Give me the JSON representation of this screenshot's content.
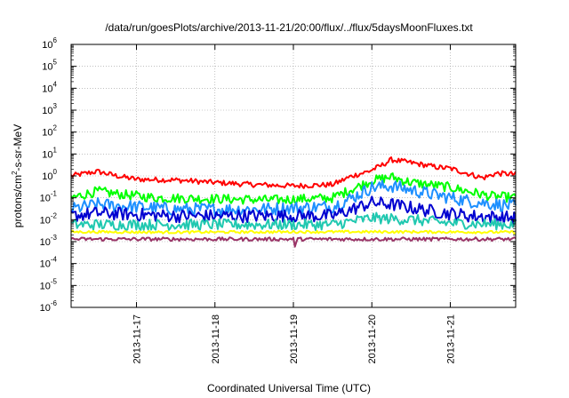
{
  "chart_data": {
    "type": "line",
    "title": "/data/run/goesPlots/archive/2013-11-21/20:00/flux/../flux/5daysMoonFluxes.txt",
    "xlabel": "Coordinated Universal Time (UTC)",
    "ylabel": "protons/cm²-s-sr-MeV",
    "ylabel_parts": [
      "protons/cm",
      "2",
      "-s-sr-MeV"
    ],
    "y_scale": "log",
    "ylim": [
      1e-06,
      1000000.0
    ],
    "y_ticks": [
      {
        "base": "10",
        "exp": "-6"
      },
      {
        "base": "10",
        "exp": "-5"
      },
      {
        "base": "10",
        "exp": "-4"
      },
      {
        "base": "10",
        "exp": "-3"
      },
      {
        "base": "10",
        "exp": "-2"
      },
      {
        "base": "10",
        "exp": "-1"
      },
      {
        "base": "10",
        "exp": "0"
      },
      {
        "base": "10",
        "exp": "1"
      },
      {
        "base": "10",
        "exp": "2"
      },
      {
        "base": "10",
        "exp": "3"
      },
      {
        "base": "10",
        "exp": "4"
      },
      {
        "base": "10",
        "exp": "5"
      },
      {
        "base": "10",
        "exp": "6"
      }
    ],
    "x_scale": "time",
    "xlim": [
      "2013-11-16 04:00",
      "2013-11-21 20:00"
    ],
    "x_ticks": [
      "2013-11-17",
      "2013-11-18",
      "2013-11-19",
      "2013-11-20",
      "2013-11-21"
    ],
    "grid": true,
    "series": [
      {
        "color": "#ff0000",
        "noise": 0.12,
        "points": [
          [
            "2013-11-16 04:00",
            1.0
          ],
          [
            "2013-11-16 12:00",
            1.6
          ],
          [
            "2013-11-16 18:00",
            1.0
          ],
          [
            "2013-11-17 00:00",
            0.7
          ],
          [
            "2013-11-17 12:00",
            0.65
          ],
          [
            "2013-11-18 00:00",
            0.5
          ],
          [
            "2013-11-18 12:00",
            0.4
          ],
          [
            "2013-11-19 00:00",
            0.35
          ],
          [
            "2013-11-19 12:00",
            0.4
          ],
          [
            "2013-11-19 18:00",
            1.0
          ],
          [
            "2013-11-19 23:00",
            1.6
          ],
          [
            "2013-11-20 03:00",
            3.0
          ],
          [
            "2013-11-20 06:00",
            5.5
          ],
          [
            "2013-11-20 12:00",
            4.0
          ],
          [
            "2013-11-20 20:00",
            2.5
          ],
          [
            "2013-11-21 00:00",
            2.2
          ],
          [
            "2013-11-21 06:00",
            1.2
          ],
          [
            "2013-11-21 10:00",
            0.8
          ],
          [
            "2013-11-21 14:00",
            1.3
          ],
          [
            "2013-11-21 20:00",
            1.2
          ]
        ]
      },
      {
        "color": "#00ff00",
        "noise": 0.22,
        "points": [
          [
            "2013-11-16 04:00",
            0.1
          ],
          [
            "2013-11-16 12:00",
            0.2
          ],
          [
            "2013-11-16 18:00",
            0.15
          ],
          [
            "2013-11-17 06:00",
            0.1
          ],
          [
            "2013-11-18 00:00",
            0.09
          ],
          [
            "2013-11-18 18:00",
            0.08
          ],
          [
            "2013-11-19 12:00",
            0.1
          ],
          [
            "2013-11-19 18:00",
            0.25
          ],
          [
            "2013-11-20 00:00",
            0.6
          ],
          [
            "2013-11-20 06:00",
            0.9
          ],
          [
            "2013-11-20 12:00",
            0.5
          ],
          [
            "2013-11-21 00:00",
            0.3
          ],
          [
            "2013-11-21 12:00",
            0.12
          ],
          [
            "2013-11-21 20:00",
            0.1
          ]
        ]
      },
      {
        "color": "#1e90ff",
        "noise": 0.3,
        "points": [
          [
            "2013-11-16 04:00",
            0.03
          ],
          [
            "2013-11-16 12:00",
            0.05
          ],
          [
            "2013-11-17 12:00",
            0.03
          ],
          [
            "2013-11-18 12:00",
            0.03
          ],
          [
            "2013-11-19 12:00",
            0.04
          ],
          [
            "2013-11-19 18:00",
            0.1
          ],
          [
            "2013-11-20 00:00",
            0.3
          ],
          [
            "2013-11-20 06:00",
            0.35
          ],
          [
            "2013-11-20 18:00",
            0.15
          ],
          [
            "2013-11-21 06:00",
            0.07
          ],
          [
            "2013-11-21 20:00",
            0.04
          ]
        ]
      },
      {
        "color": "#0000d0",
        "noise": 0.3,
        "points": [
          [
            "2013-11-16 04:00",
            0.015
          ],
          [
            "2013-11-16 12:00",
            0.02
          ],
          [
            "2013-11-17 12:00",
            0.015
          ],
          [
            "2013-11-18 12:00",
            0.015
          ],
          [
            "2013-11-19 12:00",
            0.015
          ],
          [
            "2013-11-19 18:00",
            0.03
          ],
          [
            "2013-11-20 00:00",
            0.06
          ],
          [
            "2013-11-20 06:00",
            0.05
          ],
          [
            "2013-11-20 18:00",
            0.025
          ],
          [
            "2013-11-21 06:00",
            0.015
          ],
          [
            "2013-11-21 20:00",
            0.012
          ]
        ]
      },
      {
        "color": "#20c8b0",
        "noise": 0.25,
        "points": [
          [
            "2013-11-16 04:00",
            0.006
          ],
          [
            "2013-11-17 12:00",
            0.006
          ],
          [
            "2013-11-18 12:00",
            0.006
          ],
          [
            "2013-11-19 12:00",
            0.006
          ],
          [
            "2013-11-20 00:00",
            0.012
          ],
          [
            "2013-11-20 12:00",
            0.01
          ],
          [
            "2013-11-21 00:00",
            0.007
          ],
          [
            "2013-11-21 20:00",
            0.006
          ]
        ]
      },
      {
        "color": "#ffff00",
        "noise": 0.06,
        "points": [
          [
            "2013-11-16 04:00",
            0.0028
          ],
          [
            "2013-11-17 12:00",
            0.0027
          ],
          [
            "2013-11-19 00:00",
            0.0028
          ],
          [
            "2013-11-20 12:00",
            0.0028
          ],
          [
            "2013-11-21 20:00",
            0.0027
          ]
        ]
      },
      {
        "color": "#993366",
        "noise": 0.08,
        "points": [
          [
            "2013-11-16 04:00",
            0.0013
          ],
          [
            "2013-11-17 12:00",
            0.0013
          ],
          [
            "2013-11-19 00:00",
            0.0013
          ],
          [
            "2013-11-19 00:30",
            0.0005
          ],
          [
            "2013-11-19 01:00",
            0.0013
          ],
          [
            "2013-11-20 12:00",
            0.0013
          ],
          [
            "2013-11-21 20:00",
            0.0013
          ]
        ]
      }
    ]
  }
}
